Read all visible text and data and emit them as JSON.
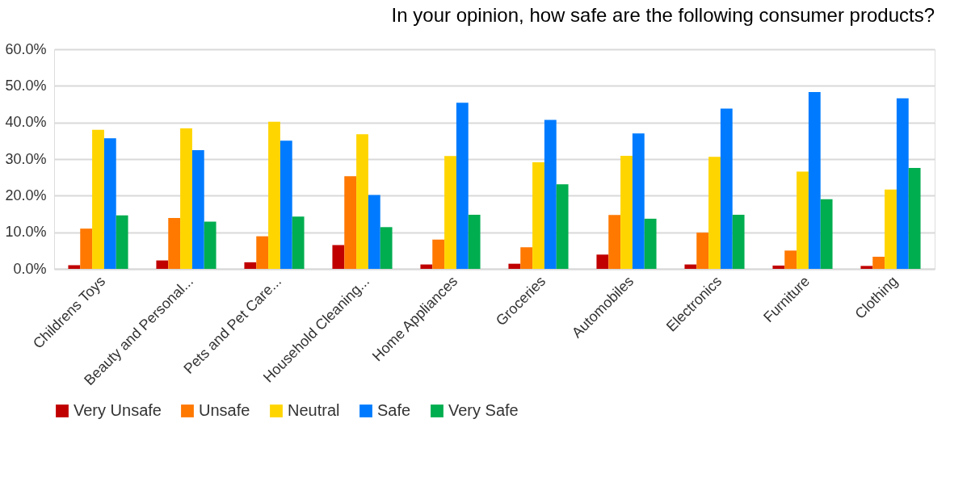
{
  "chart_data": {
    "type": "bar",
    "title": "In your opinion, how safe are the following consumer products?",
    "categories": [
      "Childrens Toys",
      "Beauty and Personal...",
      "Pets and Pet Care...",
      "Household Cleaning...",
      "Home Appliances",
      "Groceries",
      "Automobiles",
      "Electronics",
      "Furniture",
      "Clothing"
    ],
    "series": [
      {
        "name": "Very Unsafe",
        "color": "#c00000",
        "values": [
          1.0,
          2.3,
          1.8,
          6.5,
          1.2,
          1.4,
          3.9,
          1.2,
          0.9,
          0.8
        ]
      },
      {
        "name": "Unsafe",
        "color": "#ff7800",
        "values": [
          11.0,
          13.9,
          8.9,
          25.3,
          8.0,
          5.9,
          14.7,
          9.9,
          5.0,
          3.3
        ]
      },
      {
        "name": "Neutral",
        "color": "#ffd500",
        "values": [
          38.0,
          38.4,
          40.2,
          36.8,
          30.8,
          29.1,
          30.9,
          30.6,
          26.6,
          21.7
        ]
      },
      {
        "name": "Safe",
        "color": "#007bff",
        "values": [
          35.7,
          32.4,
          35.0,
          20.2,
          45.4,
          40.7,
          37.0,
          43.8,
          48.3,
          46.6
        ]
      },
      {
        "name": "Very Safe",
        "color": "#00ad4f",
        "values": [
          14.6,
          12.9,
          14.3,
          11.4,
          14.8,
          23.1,
          13.7,
          14.8,
          19.0,
          27.6
        ]
      }
    ],
    "ylim": [
      0,
      60
    ],
    "yticks": [
      {
        "value": 0,
        "label": "0.0%"
      },
      {
        "value": 10,
        "label": "10.0%"
      },
      {
        "value": 20,
        "label": "20.0%"
      },
      {
        "value": 30,
        "label": "30.0%"
      },
      {
        "value": 40,
        "label": "40.0%"
      },
      {
        "value": 50,
        "label": "50.0%"
      },
      {
        "value": 60,
        "label": "60.0%"
      }
    ],
    "grid": "y",
    "legend": "bottom"
  }
}
